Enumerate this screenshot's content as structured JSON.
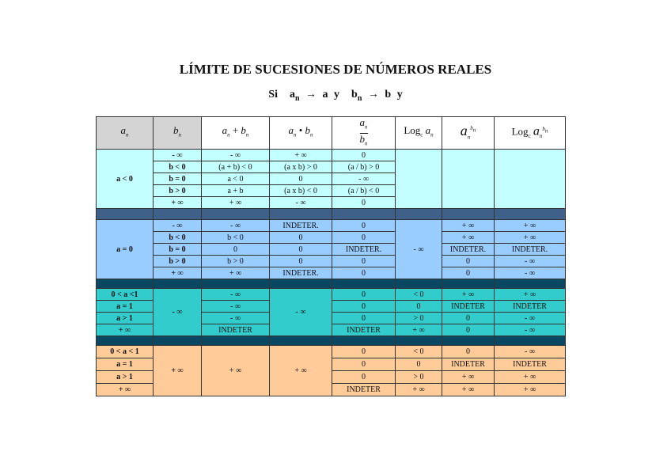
{
  "title": "LÍMITE DE SUCESIONES DE NÚMEROS REALES",
  "subtitle": {
    "si": "Si",
    "a": "a",
    "n": "n",
    "arrow": "→",
    "lim_a": "a",
    "y": "y",
    "b": "b",
    "lim_b": "b",
    "y2": "y"
  },
  "header": {
    "a": "a",
    "b": "b",
    "n": "n",
    "plus": "+",
    "dot": "•",
    "log": "Log",
    "c": "c"
  },
  "colors": {
    "header_gray": "#d4d4d4",
    "group1": "#c4ffff",
    "sep1": "#3f6088",
    "group2": "#99ccff",
    "sep2": "#0a4862",
    "group3": "#33cccc",
    "group4": "#ffcc99"
  },
  "group1": {
    "a": "a < 0",
    "rows": [
      [
        "- ∞",
        "- ∞",
        "+ ∞",
        "0"
      ],
      [
        "b < 0",
        "(a + b) < 0",
        "(a x b) > 0",
        "(a / b) > 0"
      ],
      [
        "b = 0",
        "a < 0",
        "0",
        "- ∞"
      ],
      [
        "b > 0",
        "a + b",
        "(a x b) < 0",
        "(a / b) < 0"
      ],
      [
        "+ ∞",
        "+ ∞",
        "- ∞",
        "0"
      ]
    ]
  },
  "group2": {
    "a": "a = 0",
    "log": "- ∞",
    "rows": [
      [
        "- ∞",
        "- ∞",
        "INDETER.",
        "0",
        "+ ∞",
        "+ ∞"
      ],
      [
        "b < 0",
        "b < 0",
        "0",
        "0",
        "+ ∞",
        "+ ∞"
      ],
      [
        "b = 0",
        "0",
        "0",
        "INDETER.",
        "INDETER.",
        "INDETER."
      ],
      [
        "b > 0",
        "b > 0",
        "0",
        "0",
        "0",
        "- ∞"
      ],
      [
        "+ ∞",
        "+ ∞",
        "INDETER.",
        "0",
        "0",
        "- ∞"
      ]
    ]
  },
  "group3": {
    "b": "- ∞",
    "prod": "- ∞",
    "rows": [
      [
        "0 < a <1",
        "- ∞",
        "0",
        "< 0",
        "+ ∞",
        "+ ∞"
      ],
      [
        "a = 1",
        "- ∞",
        "0",
        "0",
        "INDETER",
        "INDETER"
      ],
      [
        "a > 1",
        "- ∞",
        "0",
        "> 0",
        "0",
        "- ∞"
      ],
      [
        "+ ∞",
        "INDETER",
        "INDETER",
        "+ ∞",
        "0",
        "- ∞"
      ]
    ]
  },
  "group4": {
    "b": "+ ∞",
    "sum": "+ ∞",
    "prod": "+ ∞",
    "rows": [
      [
        "0 < a < 1",
        "0",
        "< 0",
        "0",
        "- ∞"
      ],
      [
        "a = 1",
        "0",
        "0",
        "INDETER",
        "INDETER"
      ],
      [
        "a > 1",
        "0",
        "> 0",
        "+ ∞",
        "+ ∞"
      ],
      [
        "+ ∞",
        "INDETER",
        "+ ∞",
        "+ ∞",
        "+ ∞"
      ]
    ]
  }
}
